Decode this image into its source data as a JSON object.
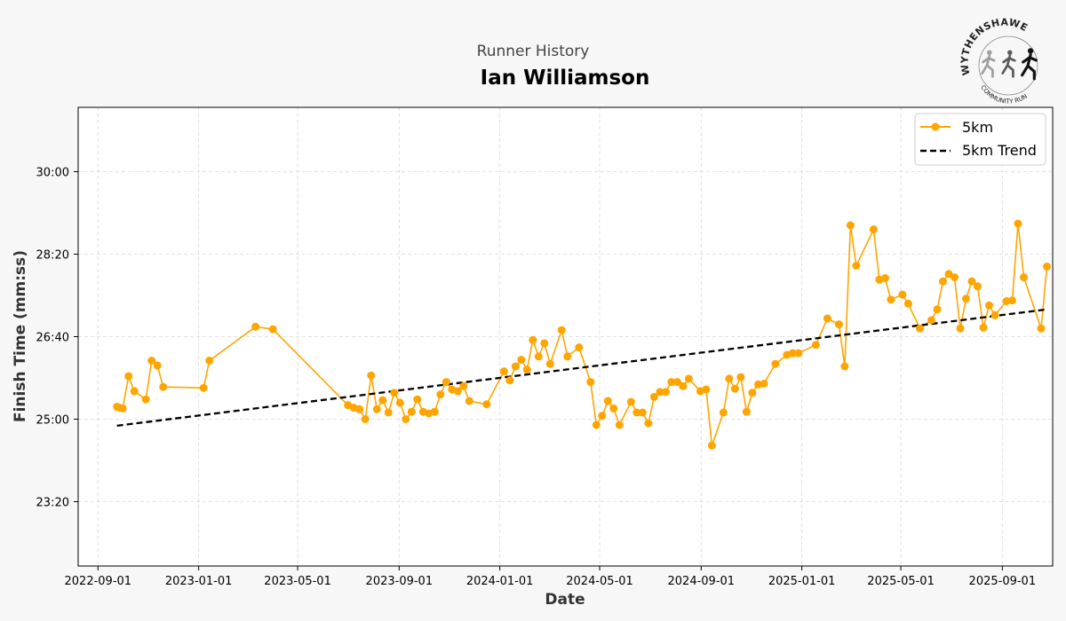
{
  "chart_data": {
    "type": "line",
    "subtitle": "Runner History",
    "title": "Ian Williamson",
    "xlabel": "Date",
    "ylabel": "Finish Time (mm:ss)",
    "x_ticks": [
      "2022-09-01",
      "2023-01-01",
      "2023-05-01",
      "2023-09-01",
      "2024-01-01",
      "2024-05-01",
      "2024-09-01",
      "2025-01-01",
      "2025-05-01",
      "2025-09-01"
    ],
    "y_ticks": [
      "23:20",
      "25:00",
      "26:40",
      "28:20",
      "30:00"
    ],
    "y_tick_seconds": [
      1400,
      1500,
      1600,
      1700,
      1800
    ],
    "xlim": [
      "2022-08-08",
      "2025-11-01"
    ],
    "ylim_seconds": [
      1322,
      1878
    ],
    "grid": true,
    "legend_position": "top-right",
    "series": [
      {
        "name": "5km",
        "color": "#FFA500",
        "style": "line-with-markers",
        "points": [
          [
            "2022-09-24",
            1515
          ],
          [
            "2022-09-27",
            1514
          ],
          [
            "2022-10-01",
            1513
          ],
          [
            "2022-10-08",
            1552
          ],
          [
            "2022-10-15",
            1534
          ],
          [
            "2022-10-29",
            1524
          ],
          [
            "2022-11-05",
            1571
          ],
          [
            "2022-11-12",
            1565
          ],
          [
            "2022-11-19",
            1539
          ],
          [
            "2023-01-07",
            1538
          ],
          [
            "2023-01-14",
            1571
          ],
          [
            "2023-03-11",
            1612
          ],
          [
            "2023-04-01",
            1609
          ],
          [
            "2023-07-01",
            1517
          ],
          [
            "2023-07-08",
            1514
          ],
          [
            "2023-07-15",
            1512
          ],
          [
            "2023-07-22",
            1500
          ],
          [
            "2023-07-29",
            1553
          ],
          [
            "2023-08-05",
            1512
          ],
          [
            "2023-08-12",
            1523
          ],
          [
            "2023-08-19",
            1508
          ],
          [
            "2023-08-26",
            1532
          ],
          [
            "2023-09-02",
            1520
          ],
          [
            "2023-09-09",
            1500
          ],
          [
            "2023-09-16",
            1509
          ],
          [
            "2023-09-23",
            1524
          ],
          [
            "2023-09-30",
            1509
          ],
          [
            "2023-10-07",
            1507
          ],
          [
            "2023-10-14",
            1509
          ],
          [
            "2023-10-21",
            1530
          ],
          [
            "2023-10-28",
            1545
          ],
          [
            "2023-11-04",
            1536
          ],
          [
            "2023-11-11",
            1534
          ],
          [
            "2023-11-18",
            1540
          ],
          [
            "2023-11-25",
            1522
          ],
          [
            "2023-12-16",
            1518
          ],
          [
            "2024-01-06",
            1558
          ],
          [
            "2024-01-13",
            1547
          ],
          [
            "2024-01-20",
            1564
          ],
          [
            "2024-01-27",
            1572
          ],
          [
            "2024-02-03",
            1560
          ],
          [
            "2024-02-10",
            1596
          ],
          [
            "2024-02-17",
            1576
          ],
          [
            "2024-02-24",
            1592
          ],
          [
            "2024-03-02",
            1567
          ],
          [
            "2024-03-16",
            1608
          ],
          [
            "2024-03-23",
            1576
          ],
          [
            "2024-04-06",
            1587
          ],
          [
            "2024-04-20",
            1545
          ],
          [
            "2024-04-27",
            1493
          ],
          [
            "2024-05-04",
            1504
          ],
          [
            "2024-05-11",
            1522
          ],
          [
            "2024-05-18",
            1513
          ],
          [
            "2024-05-25",
            1493
          ],
          [
            "2024-06-08",
            1521
          ],
          [
            "2024-06-15",
            1508
          ],
          [
            "2024-06-22",
            1508
          ],
          [
            "2024-06-29",
            1495
          ],
          [
            "2024-07-06",
            1527
          ],
          [
            "2024-07-13",
            1533
          ],
          [
            "2024-07-20",
            1533
          ],
          [
            "2024-07-27",
            1545
          ],
          [
            "2024-08-03",
            1545
          ],
          [
            "2024-08-10",
            1540
          ],
          [
            "2024-08-17",
            1549
          ],
          [
            "2024-08-31",
            1534
          ],
          [
            "2024-09-07",
            1536
          ],
          [
            "2024-09-14",
            1468
          ],
          [
            "2024-09-28",
            1508
          ],
          [
            "2024-10-05",
            1549
          ],
          [
            "2024-10-12",
            1537
          ],
          [
            "2024-10-19",
            1551
          ],
          [
            "2024-10-26",
            1509
          ],
          [
            "2024-11-02",
            1532
          ],
          [
            "2024-11-09",
            1542
          ],
          [
            "2024-11-16",
            1543
          ],
          [
            "2024-11-30",
            1567
          ],
          [
            "2024-12-14",
            1578
          ],
          [
            "2024-12-21",
            1580
          ],
          [
            "2024-12-28",
            1580
          ],
          [
            "2025-01-18",
            1590
          ],
          [
            "2025-02-01",
            1622
          ],
          [
            "2025-02-15",
            1615
          ],
          [
            "2025-02-22",
            1564
          ],
          [
            "2025-03-01",
            1735
          ],
          [
            "2025-03-08",
            1686
          ],
          [
            "2025-03-29",
            1730
          ],
          [
            "2025-04-05",
            1669
          ],
          [
            "2025-04-12",
            1671
          ],
          [
            "2025-04-19",
            1645
          ],
          [
            "2025-05-03",
            1651
          ],
          [
            "2025-05-10",
            1640
          ],
          [
            "2025-05-24",
            1610
          ],
          [
            "2025-06-07",
            1620
          ],
          [
            "2025-06-14",
            1633
          ],
          [
            "2025-06-21",
            1667
          ],
          [
            "2025-06-28",
            1676
          ],
          [
            "2025-07-05",
            1672
          ],
          [
            "2025-07-12",
            1610
          ],
          [
            "2025-07-19",
            1646
          ],
          [
            "2025-07-26",
            1667
          ],
          [
            "2025-08-02",
            1661
          ],
          [
            "2025-08-09",
            1611
          ],
          [
            "2025-08-16",
            1638
          ],
          [
            "2025-08-23",
            1626
          ],
          [
            "2025-09-06",
            1643
          ],
          [
            "2025-09-13",
            1644
          ],
          [
            "2025-09-20",
            1737
          ],
          [
            "2025-09-27",
            1672
          ],
          [
            "2025-10-18",
            1610
          ],
          [
            "2025-10-25",
            1685
          ]
        ]
      },
      {
        "name": "5km Trend",
        "color": "#000000",
        "style": "dashed",
        "points": [
          [
            "2022-09-24",
            1492
          ],
          [
            "2025-10-25",
            1633
          ]
        ]
      }
    ]
  },
  "logo": {
    "top_text": "WYTHENSHAWE",
    "bottom_text": "COMMUNITY RUN",
    "runner_colors": [
      "#9e9e9e",
      "#5a5a5a",
      "#111111"
    ]
  }
}
